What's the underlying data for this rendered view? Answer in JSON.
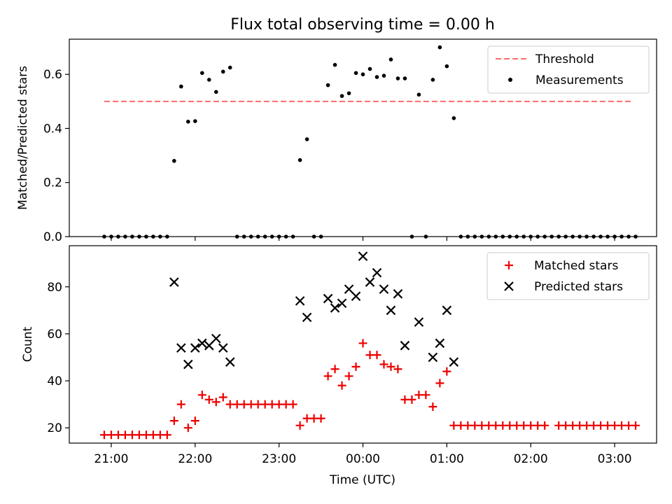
{
  "title": "Flux total observing time = 0.00 h",
  "colors": {
    "threshold": "#ff6b6b",
    "matched": "#ee0000",
    "predicted": "#000000",
    "measurement": "#000000"
  },
  "chart_data": [
    {
      "type": "scatter",
      "ylabel": "Matched/Predicted stars",
      "ylim": [
        0,
        0.73
      ],
      "yticks": [
        0.0,
        0.2,
        0.4,
        0.6
      ],
      "ytick_labels": [
        "0.0",
        "0.2",
        "0.4",
        "0.6"
      ],
      "legend_position": "top-right",
      "threshold": {
        "name": "Threshold",
        "value": 0.5,
        "x_range": [
          "20:55",
          "03:12"
        ]
      },
      "series": [
        {
          "name": "Measurements",
          "marker": "dot",
          "points": [
            [
              "20:55",
              0.0
            ],
            [
              "21:00",
              0.0
            ],
            [
              "21:05",
              0.0
            ],
            [
              "21:10",
              0.0
            ],
            [
              "21:15",
              0.0
            ],
            [
              "21:20",
              0.0
            ],
            [
              "21:25",
              0.0
            ],
            [
              "21:30",
              0.0
            ],
            [
              "21:35",
              0.0
            ],
            [
              "21:40",
              0.0
            ],
            [
              "21:45",
              0.28
            ],
            [
              "21:50",
              0.555
            ],
            [
              "21:55",
              0.425
            ],
            [
              "22:00",
              0.427
            ],
            [
              "22:05",
              0.605
            ],
            [
              "22:10",
              0.58
            ],
            [
              "22:15",
              0.535
            ],
            [
              "22:20",
              0.61
            ],
            [
              "22:25",
              0.625
            ],
            [
              "22:30",
              0.0
            ],
            [
              "22:35",
              0.0
            ],
            [
              "22:40",
              0.0
            ],
            [
              "22:45",
              0.0
            ],
            [
              "22:50",
              0.0
            ],
            [
              "22:55",
              0.0
            ],
            [
              "23:00",
              0.0
            ],
            [
              "23:05",
              0.0
            ],
            [
              "23:10",
              0.0
            ],
            [
              "23:15",
              0.283
            ],
            [
              "23:20",
              0.36
            ],
            [
              "23:25",
              0.0
            ],
            [
              "23:30",
              0.0
            ],
            [
              "23:35",
              0.56
            ],
            [
              "23:40",
              0.635
            ],
            [
              "23:45",
              0.52
            ],
            [
              "23:50",
              0.53
            ],
            [
              "23:55",
              0.605
            ],
            [
              "00:00",
              0.6
            ],
            [
              "00:05",
              0.62
            ],
            [
              "00:10",
              0.59
            ],
            [
              "00:15",
              0.595
            ],
            [
              "00:20",
              0.655
            ],
            [
              "00:25",
              0.585
            ],
            [
              "00:30",
              0.585
            ],
            [
              "00:35",
              0.0
            ],
            [
              "00:40",
              0.525
            ],
            [
              "00:45",
              0.0
            ],
            [
              "00:50",
              0.58
            ],
            [
              "00:55",
              0.7
            ],
            [
              "01:00",
              0.63
            ],
            [
              "01:05",
              0.438
            ],
            [
              "01:10",
              0.0
            ],
            [
              "01:15",
              0.0
            ],
            [
              "01:20",
              0.0
            ],
            [
              "01:25",
              0.0
            ],
            [
              "01:30",
              0.0
            ],
            [
              "01:35",
              0.0
            ],
            [
              "01:40",
              0.0
            ],
            [
              "01:45",
              0.0
            ],
            [
              "01:50",
              0.0
            ],
            [
              "01:55",
              0.0
            ],
            [
              "02:00",
              0.0
            ],
            [
              "02:05",
              0.0
            ],
            [
              "02:10",
              0.0
            ],
            [
              "02:15",
              0.0
            ],
            [
              "02:20",
              0.0
            ],
            [
              "02:25",
              0.0
            ],
            [
              "02:30",
              0.0
            ],
            [
              "02:35",
              0.0
            ],
            [
              "02:40",
              0.0
            ],
            [
              "02:45",
              0.0
            ],
            [
              "02:50",
              0.0
            ],
            [
              "02:55",
              0.0
            ],
            [
              "03:00",
              0.0
            ],
            [
              "03:05",
              0.0
            ],
            [
              "03:10",
              0.0
            ],
            [
              "03:15",
              0.0
            ]
          ]
        }
      ]
    },
    {
      "type": "scatter",
      "ylabel": "Count",
      "xlabel": "Time (UTC)",
      "ylim": [
        13.5,
        97.5
      ],
      "yticks": [
        20,
        40,
        60,
        80
      ],
      "ytick_labels": [
        "20",
        "40",
        "60",
        "80"
      ],
      "x_range": [
        "20:30",
        "03:30"
      ],
      "xticks": [
        "21:00",
        "22:00",
        "23:00",
        "00:00",
        "01:00",
        "02:00",
        "03:00"
      ],
      "legend_position": "top-right",
      "series": [
        {
          "name": "Matched stars",
          "marker": "plus",
          "points": [
            [
              "20:55",
              17
            ],
            [
              "21:00",
              17
            ],
            [
              "21:05",
              17
            ],
            [
              "21:10",
              17
            ],
            [
              "21:15",
              17
            ],
            [
              "21:20",
              17
            ],
            [
              "21:25",
              17
            ],
            [
              "21:30",
              17
            ],
            [
              "21:35",
              17
            ],
            [
              "21:40",
              17
            ],
            [
              "21:45",
              23
            ],
            [
              "21:50",
              30
            ],
            [
              "21:55",
              20
            ],
            [
              "22:00",
              23
            ],
            [
              "22:05",
              34
            ],
            [
              "22:10",
              32
            ],
            [
              "22:15",
              31
            ],
            [
              "22:20",
              33
            ],
            [
              "22:25",
              30
            ],
            [
              "22:30",
              30
            ],
            [
              "22:35",
              30
            ],
            [
              "22:40",
              30
            ],
            [
              "22:45",
              30
            ],
            [
              "22:50",
              30
            ],
            [
              "22:55",
              30
            ],
            [
              "23:00",
              30
            ],
            [
              "23:05",
              30
            ],
            [
              "23:10",
              30
            ],
            [
              "23:15",
              21
            ],
            [
              "23:20",
              24
            ],
            [
              "23:25",
              24
            ],
            [
              "23:30",
              24
            ],
            [
              "23:35",
              42
            ],
            [
              "23:40",
              45
            ],
            [
              "23:45",
              38
            ],
            [
              "23:50",
              42
            ],
            [
              "23:55",
              46
            ],
            [
              "00:00",
              56
            ],
            [
              "00:05",
              51
            ],
            [
              "00:10",
              51
            ],
            [
              "00:15",
              47
            ],
            [
              "00:20",
              46
            ],
            [
              "00:25",
              45
            ],
            [
              "00:30",
              32
            ],
            [
              "00:35",
              32
            ],
            [
              "00:40",
              34
            ],
            [
              "00:45",
              34
            ],
            [
              "00:50",
              29
            ],
            [
              "00:55",
              39
            ],
            [
              "01:00",
              44
            ],
            [
              "01:05",
              21
            ],
            [
              "01:10",
              21
            ],
            [
              "01:15",
              21
            ],
            [
              "01:20",
              21
            ],
            [
              "01:25",
              21
            ],
            [
              "01:30",
              21
            ],
            [
              "01:35",
              21
            ],
            [
              "01:40",
              21
            ],
            [
              "01:45",
              21
            ],
            [
              "01:50",
              21
            ],
            [
              "01:55",
              21
            ],
            [
              "02:00",
              21
            ],
            [
              "02:05",
              21
            ],
            [
              "02:10",
              21
            ],
            [
              "02:20",
              21
            ],
            [
              "02:25",
              21
            ],
            [
              "02:30",
              21
            ],
            [
              "02:35",
              21
            ],
            [
              "02:40",
              21
            ],
            [
              "02:45",
              21
            ],
            [
              "02:50",
              21
            ],
            [
              "02:55",
              21
            ],
            [
              "03:00",
              21
            ],
            [
              "03:05",
              21
            ],
            [
              "03:10",
              21
            ],
            [
              "03:15",
              21
            ]
          ]
        },
        {
          "name": "Predicted stars",
          "marker": "x",
          "points": [
            [
              "21:45",
              82
            ],
            [
              "21:50",
              54
            ],
            [
              "21:55",
              47
            ],
            [
              "22:00",
              54
            ],
            [
              "22:05",
              56
            ],
            [
              "22:10",
              55
            ],
            [
              "22:15",
              58
            ],
            [
              "22:20",
              54
            ],
            [
              "22:25",
              48
            ],
            [
              "23:15",
              74
            ],
            [
              "23:20",
              67
            ],
            [
              "23:35",
              75
            ],
            [
              "23:40",
              71
            ],
            [
              "23:45",
              73
            ],
            [
              "23:50",
              79
            ],
            [
              "23:55",
              76
            ],
            [
              "00:00",
              93
            ],
            [
              "00:05",
              82
            ],
            [
              "00:10",
              86
            ],
            [
              "00:15",
              79
            ],
            [
              "00:20",
              70
            ],
            [
              "00:25",
              77
            ],
            [
              "00:30",
              55
            ],
            [
              "00:40",
              65
            ],
            [
              "00:50",
              50
            ],
            [
              "00:55",
              56
            ],
            [
              "01:00",
              70
            ],
            [
              "01:05",
              48
            ]
          ]
        }
      ]
    }
  ]
}
